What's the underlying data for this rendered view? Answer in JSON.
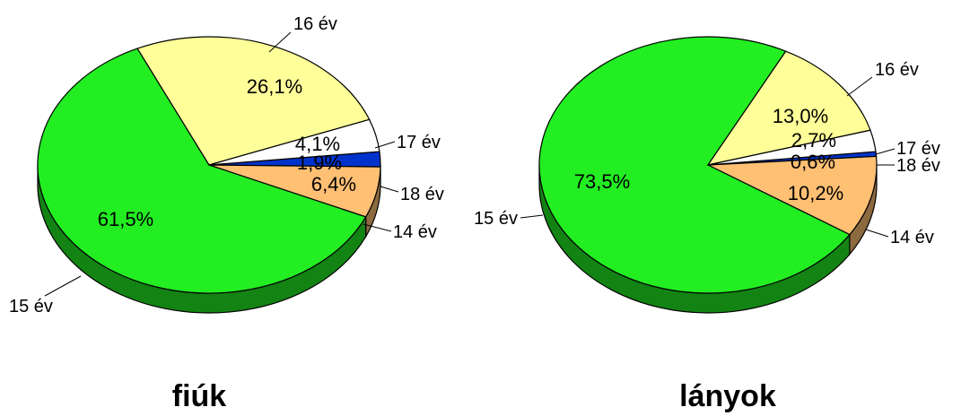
{
  "chart_data": [
    {
      "type": "pie",
      "title": "fiúk",
      "slices": [
        {
          "label": "14 év",
          "value": 6.4,
          "value_label": "6,4%",
          "color": "#FFC073"
        },
        {
          "label": "15 év",
          "value": 61.5,
          "value_label": "61,5%",
          "color": "#22EE22"
        },
        {
          "label": "16 év",
          "value": 26.1,
          "value_label": "26,1%",
          "color": "#FFFF99"
        },
        {
          "label": "17 év",
          "value": 4.1,
          "value_label": "4,1%",
          "color": "#FFFFFF"
        },
        {
          "label": "18 év",
          "value": 1.9,
          "value_label": "1,9%",
          "color": "#0033CC"
        }
      ]
    },
    {
      "type": "pie",
      "title": "lányok",
      "slices": [
        {
          "label": "14 év",
          "value": 10.2,
          "value_label": "10,2%",
          "color": "#FFC073"
        },
        {
          "label": "15 év",
          "value": 73.5,
          "value_label": "73,5%",
          "color": "#22EE22"
        },
        {
          "label": "16 év",
          "value": 13.0,
          "value_label": "13,0%",
          "color": "#FFFF99"
        },
        {
          "label": "17 év",
          "value": 2.7,
          "value_label": "2,7%",
          "color": "#FFFFFF"
        },
        {
          "label": "18 év",
          "value": 0.6,
          "value_label": "0,6%",
          "color": "#0033CC"
        }
      ]
    }
  ]
}
